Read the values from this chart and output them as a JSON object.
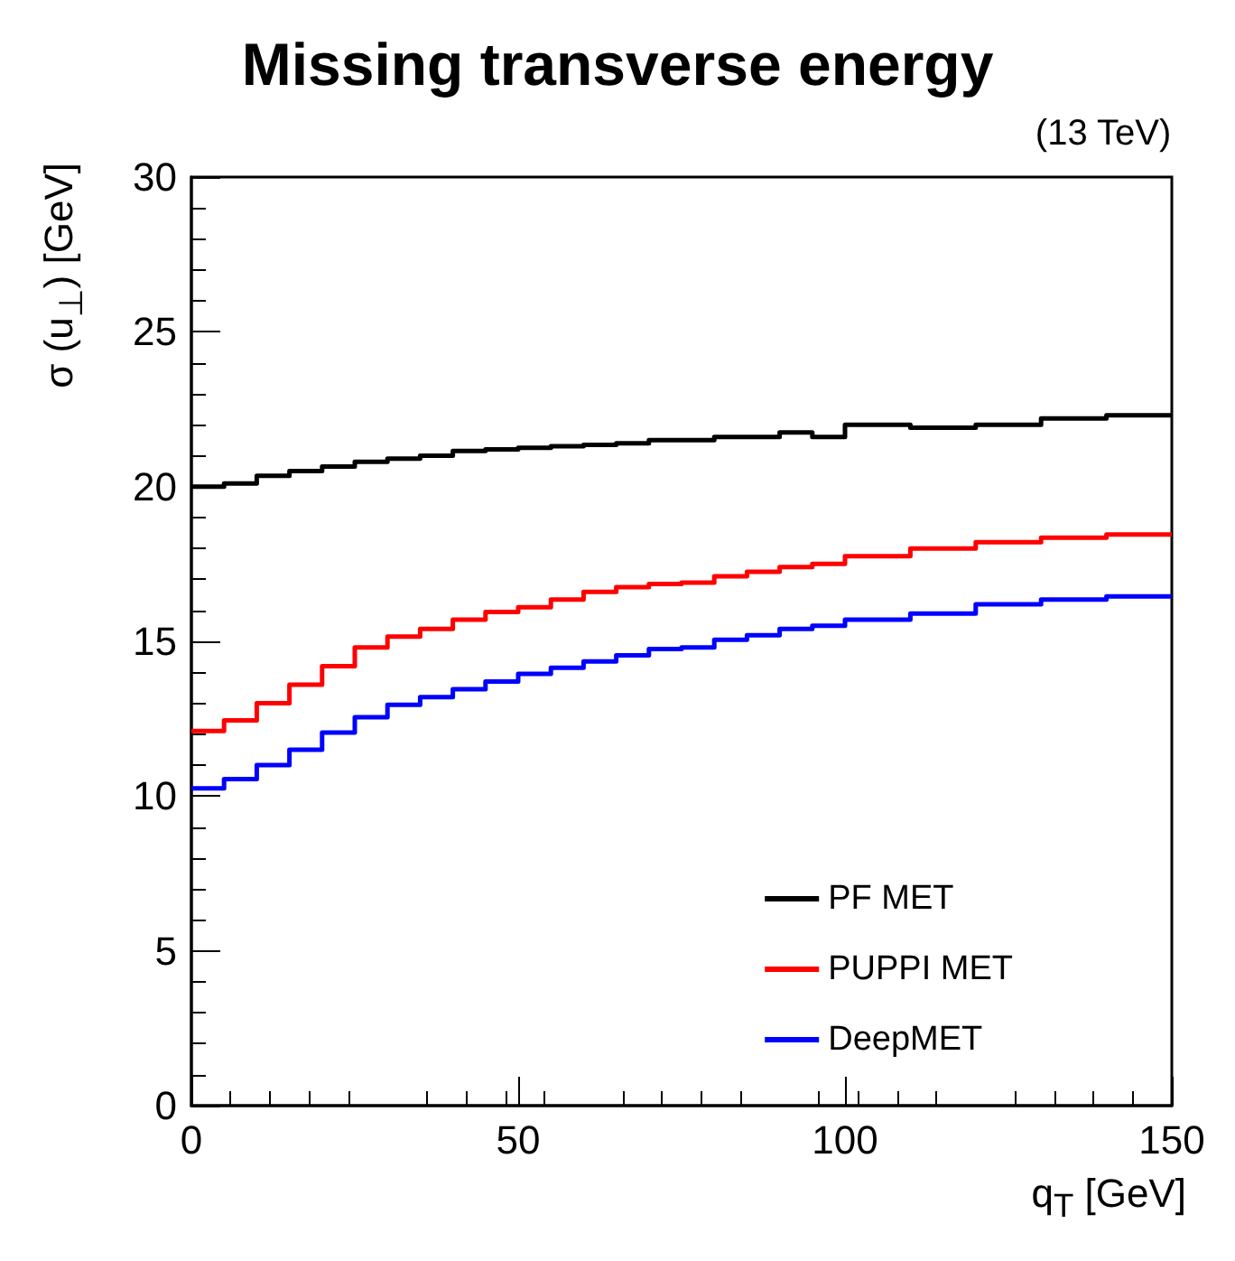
{
  "chart_data": {
    "type": "histogram",
    "title": "Missing transverse energy",
    "xlabel": "q$_{T}$ [GeV]",
    "ylabel": "σ (u$_{⊥}$) [GeV]",
    "annotations": [
      "(13 TeV)"
    ],
    "bins": [
      0,
      5,
      10,
      15,
      20,
      25,
      30,
      35,
      40,
      45,
      50,
      55,
      60,
      65,
      70,
      75,
      80,
      85,
      90,
      95,
      100,
      110,
      120,
      130,
      140,
      150
    ],
    "series": [
      {
        "name": "PF MET",
        "color": "#000000",
        "values": [
          20.0,
          20.1,
          20.35,
          20.5,
          20.65,
          20.8,
          20.9,
          21.0,
          21.15,
          21.2,
          21.25,
          21.3,
          21.35,
          21.4,
          21.5,
          21.5,
          21.6,
          21.6,
          21.75,
          21.6,
          22.0,
          21.9,
          22.0,
          22.2,
          22.3
        ]
      },
      {
        "name": "PUPPI MET",
        "color": "#ff0000",
        "values": [
          12.1,
          12.45,
          13.0,
          13.6,
          14.2,
          14.8,
          15.15,
          15.4,
          15.7,
          15.95,
          16.1,
          16.35,
          16.6,
          16.75,
          16.85,
          16.9,
          17.1,
          17.25,
          17.4,
          17.5,
          17.75,
          18.0,
          18.2,
          18.35,
          18.45
        ]
      },
      {
        "name": "DeepMET",
        "color": "#0000ff",
        "values": [
          10.25,
          10.55,
          11.0,
          11.5,
          12.05,
          12.55,
          12.95,
          13.2,
          13.45,
          13.7,
          13.95,
          14.15,
          14.35,
          14.55,
          14.75,
          14.8,
          15.05,
          15.2,
          15.4,
          15.5,
          15.7,
          15.9,
          16.2,
          16.35,
          16.45
        ]
      }
    ],
    "xlim": [
      0,
      150
    ],
    "xticks": [
      0,
      50,
      100,
      150
    ],
    "ylim": [
      0,
      30
    ],
    "yticks": [
      0,
      5,
      10,
      15,
      20,
      25,
      30
    ],
    "legend": "bottom right",
    "grid": false
  }
}
